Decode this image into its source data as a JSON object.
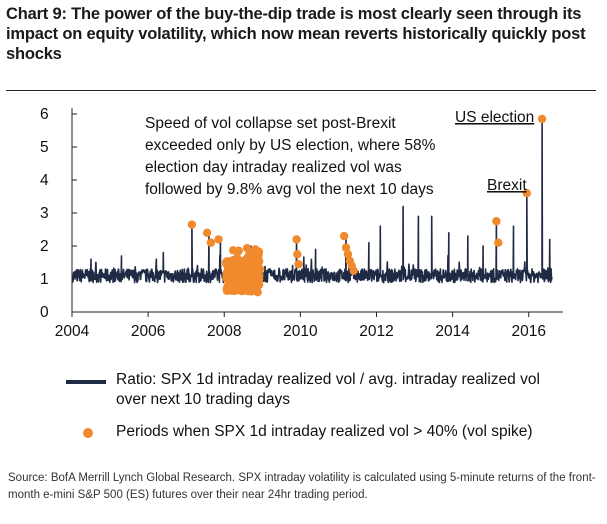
{
  "header": {
    "title": "Chart 9: The power of the buy-the-dip trade is most clearly seen through its impact on equity volatility, which now mean reverts historically quickly post shocks"
  },
  "chart_data": {
    "type": "line",
    "x_ticks": [
      "2004",
      "2006",
      "2008",
      "2010",
      "2012",
      "2014",
      "2016"
    ],
    "y_ticks": [
      "0",
      "1",
      "2",
      "3",
      "4",
      "5",
      "6"
    ],
    "xlim": [
      2004,
      2016.9
    ],
    "ylim": [
      0,
      6
    ],
    "colors": {
      "line": "#1f2a44",
      "spike": "#f08a2c"
    },
    "series": [
      {
        "name": "Ratio: SPX 1d intraday realized vol / avg. intraday realized vol over next 10 trading days",
        "baseline": 1.1,
        "notable_values": [
          {
            "x": 2004.5,
            "y": 1.6
          },
          {
            "x": 2005.3,
            "y": 1.7
          },
          {
            "x": 2006.4,
            "y": 1.8
          },
          {
            "x": 2007.15,
            "y": 2.65
          },
          {
            "x": 2007.6,
            "y": 2.4
          },
          {
            "x": 2007.9,
            "y": 2.2
          },
          {
            "x": 2008.7,
            "y": 2.0
          },
          {
            "x": 2009.9,
            "y": 2.2
          },
          {
            "x": 2010.4,
            "y": 1.9
          },
          {
            "x": 2011.2,
            "y": 2.35
          },
          {
            "x": 2011.8,
            "y": 2.1
          },
          {
            "x": 2012.1,
            "y": 2.6
          },
          {
            "x": 2012.7,
            "y": 3.2
          },
          {
            "x": 2013.1,
            "y": 2.9
          },
          {
            "x": 2013.45,
            "y": 2.9
          },
          {
            "x": 2013.9,
            "y": 2.4
          },
          {
            "x": 2014.4,
            "y": 2.3
          },
          {
            "x": 2014.8,
            "y": 2.0
          },
          {
            "x": 2015.15,
            "y": 2.75
          },
          {
            "x": 2015.6,
            "y": 2.6
          },
          {
            "x": 2015.95,
            "y": 3.6
          },
          {
            "x": 2016.35,
            "y": 5.85
          },
          {
            "x": 2016.55,
            "y": 2.2
          }
        ]
      },
      {
        "name": "Periods when SPX 1d intraday realized vol > 40% (vol spike)",
        "points": [
          {
            "x": 2007.15,
            "y": 2.65
          },
          {
            "x": 2007.55,
            "y": 2.4
          },
          {
            "x": 2007.65,
            "y": 2.1
          },
          {
            "x": 2007.85,
            "y": 2.2
          },
          {
            "x": 2009.9,
            "y": 2.2
          },
          {
            "x": 2009.92,
            "y": 1.75
          },
          {
            "x": 2009.95,
            "y": 1.45
          },
          {
            "x": 2011.15,
            "y": 2.3
          },
          {
            "x": 2011.2,
            "y": 1.95
          },
          {
            "x": 2011.25,
            "y": 1.75
          },
          {
            "x": 2011.3,
            "y": 1.55
          },
          {
            "x": 2011.35,
            "y": 1.4
          },
          {
            "x": 2011.4,
            "y": 1.25
          },
          {
            "x": 2015.15,
            "y": 2.75
          },
          {
            "x": 2015.2,
            "y": 2.1
          },
          {
            "x": 2015.95,
            "y": 3.6
          },
          {
            "x": 2016.35,
            "y": 5.85
          }
        ],
        "dense_cluster": {
          "x_range": [
            2008.05,
            2008.95
          ],
          "y_range": [
            0.6,
            2.0
          ]
        }
      }
    ],
    "annotations": {
      "main_note": [
        "Speed of vol collapse set post-Brexit",
        "exceeded only by US election, where 58%",
        "election day intraday realized vol was",
        "followed by 9.8% avg vol the next 10 days"
      ],
      "us_election": "US election",
      "brexit": "Brexit"
    }
  },
  "legend": {
    "line_label_1": "Ratio: SPX 1d intraday realized vol / avg. intraday realized vol",
    "line_label_2": "over next 10 trading days",
    "dot_label": "Periods when SPX 1d intraday realized vol > 40% (vol spike)"
  },
  "footer": {
    "source": "Source: BofA Merrill Lynch Global Research.  SPX intraday volatility is calculated using 5-minute returns of the front-month e-mini S&P 500 (ES) futures over their near 24hr trading period."
  }
}
